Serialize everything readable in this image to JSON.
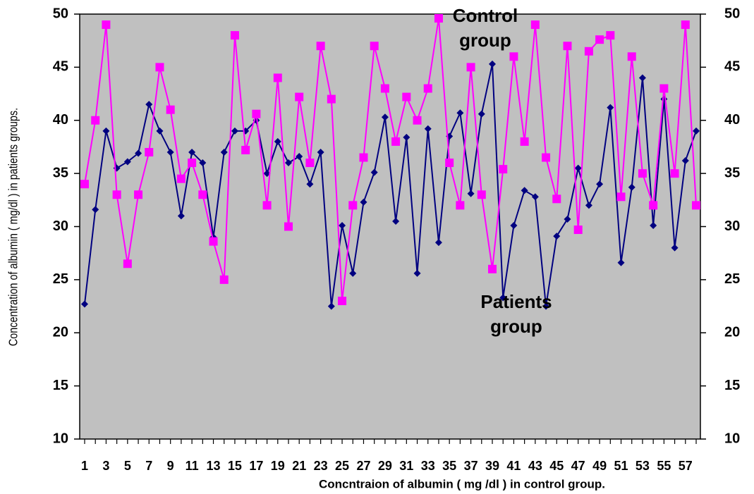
{
  "chart_data": {
    "type": "line",
    "y_label": "Concentration of albumin ( mg/dl ) in patients groups.",
    "x_label": "Concntraion of albumin ( mg /dl ) in control group.",
    "annotations": [
      [
        "Control",
        "group"
      ],
      [
        "Patients",
        "group"
      ]
    ],
    "categories": [
      1,
      null,
      3,
      null,
      5,
      null,
      7,
      null,
      9,
      null,
      11,
      null,
      13,
      null,
      15,
      null,
      17,
      null,
      19,
      null,
      21,
      null,
      23,
      null,
      25,
      null,
      27,
      null,
      29,
      null,
      31,
      null,
      33,
      null,
      35,
      null,
      37,
      null,
      39,
      null,
      41,
      null,
      43,
      null,
      45,
      null,
      47,
      null,
      49,
      null,
      51,
      null,
      53,
      null,
      55,
      null,
      57,
      null
    ],
    "series": [
      {
        "name": "Patients group",
        "color": "#000080",
        "marker": "diamond",
        "values": [
          22.7,
          31.6,
          39,
          35.5,
          36.1,
          36.9,
          41.5,
          39,
          37,
          31,
          37,
          36,
          29,
          37,
          39,
          39,
          40,
          35,
          38,
          36,
          36.6,
          34,
          37,
          22.5,
          30.1,
          25.6,
          32.3,
          35.1,
          40.3,
          30.5,
          38.4,
          25.6,
          39.2,
          28.5,
          38.5,
          40.7,
          33.1,
          40.6,
          45.3,
          23.3,
          30.1,
          33.4,
          32.8,
          22.5,
          29.1,
          30.7,
          35.5,
          32,
          34,
          41.2,
          26.6,
          33.7,
          44,
          30.1,
          42,
          28,
          36.2,
          39
        ]
      },
      {
        "name": "Control group",
        "color": "#ff00ff",
        "marker": "square",
        "values": [
          34,
          40,
          49,
          33,
          26.5,
          33,
          37,
          45,
          41,
          34.5,
          36,
          33,
          28.6,
          25,
          48,
          37.2,
          40.6,
          32,
          44,
          30,
          42.2,
          36,
          47,
          42,
          23,
          32,
          36.5,
          47,
          43,
          38,
          42.2,
          40,
          43,
          49.6,
          36,
          32,
          45,
          33,
          26,
          35.4,
          46,
          38,
          49,
          36.5,
          32.6,
          47,
          29.7,
          46.5,
          47.6,
          48,
          32.8,
          46,
          35,
          32,
          43,
          35,
          49,
          32
        ]
      }
    ],
    "ylim": [
      10,
      50
    ],
    "yticks": [
      10,
      15,
      20,
      25,
      30,
      35,
      40,
      45,
      50
    ],
    "y2lim": [
      10,
      50
    ],
    "y2ticks": [
      10,
      15,
      20,
      25,
      30,
      35,
      40,
      45,
      50
    ],
    "plot_background": "#c0c0c0",
    "grid": false
  }
}
